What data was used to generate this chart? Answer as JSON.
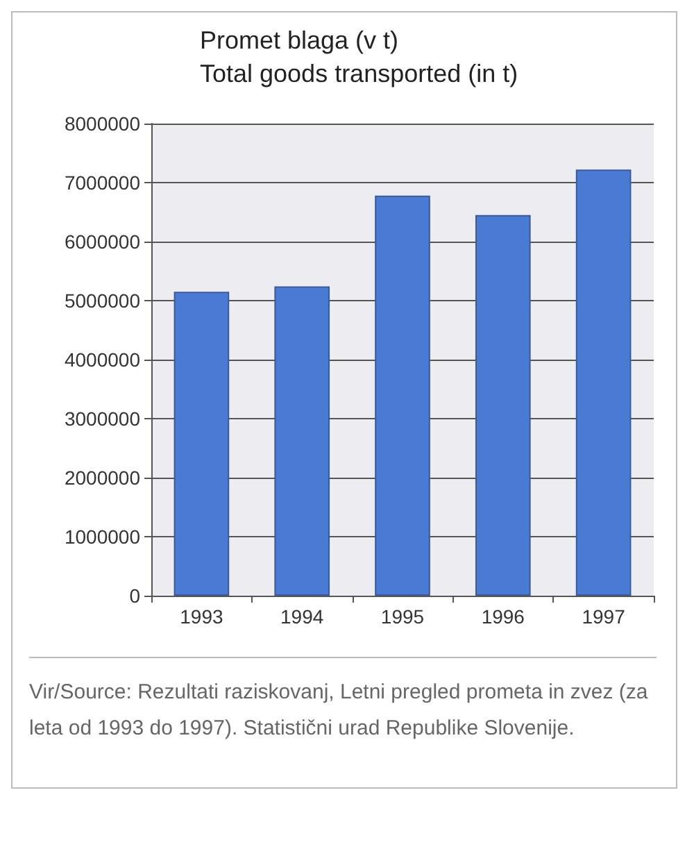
{
  "chart_data": {
    "type": "bar",
    "title": "Promet blaga (v t)",
    "subtitle": "Total goods transported (in t)",
    "categories": [
      "1993",
      "1994",
      "1995",
      "1996",
      "1997"
    ],
    "values": [
      5150000,
      5240000,
      6780000,
      6450000,
      7220000
    ],
    "color": "#4a7bd4",
    "ylim": [
      0,
      8000000
    ],
    "yticks": [
      0,
      1000000,
      2000000,
      3000000,
      4000000,
      5000000,
      6000000,
      7000000,
      8000000
    ],
    "grid": "y",
    "annotations": [
      "Vir/Source: Rezultati raziskovanj, Letni pregled prometa in zvez (za leta od 1993 do 1997). Statistični urad Republike Slovenije."
    ]
  }
}
